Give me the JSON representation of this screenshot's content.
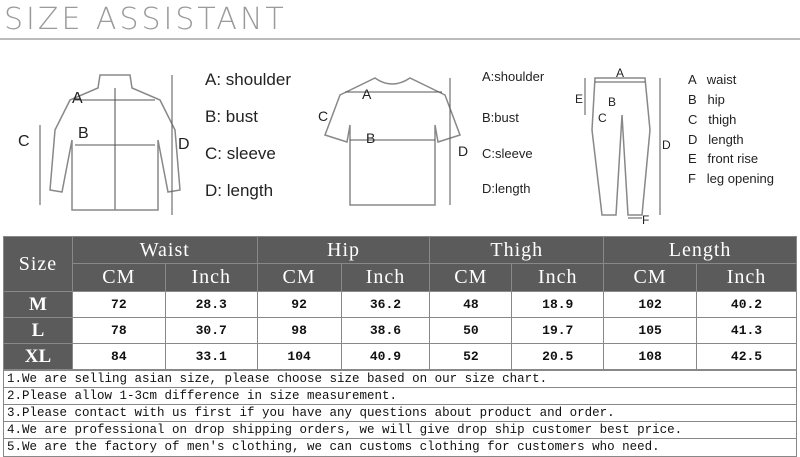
{
  "title": "SIZE ASSISTANT",
  "jacket": {
    "labels": {
      "a": "A",
      "b": "B",
      "c": "C",
      "d": "D"
    },
    "legend": [
      "A: shoulder",
      "B: bust",
      "C: sleeve",
      "D: length"
    ]
  },
  "tshirt": {
    "labels": {
      "a": "A",
      "b": "B",
      "c": "C",
      "d": "D"
    },
    "legend": [
      "A:shoulder",
      "B:bust",
      "C:sleeve",
      "D:length"
    ]
  },
  "pants": {
    "labels": {
      "a": "A",
      "b": "B",
      "c": "C",
      "d": "D",
      "e": "E",
      "f": "F"
    },
    "legend": [
      "A   waist",
      "B   hip",
      "C   thigh",
      "D   length",
      "E   front rise",
      "F   leg opening"
    ]
  },
  "table": {
    "size_header": "Size",
    "groups": [
      "Waist",
      "Hip",
      "Thigh",
      "Length"
    ],
    "units": [
      "CM",
      "Inch"
    ],
    "rows": [
      {
        "size": "M",
        "values": [
          "72",
          "28.3",
          "92",
          "36.2",
          "48",
          "18.9",
          "102",
          "40.2"
        ]
      },
      {
        "size": "L",
        "values": [
          "78",
          "30.7",
          "98",
          "38.6",
          "50",
          "19.7",
          "105",
          "41.3"
        ]
      },
      {
        "size": "XL",
        "values": [
          "84",
          "33.1",
          "104",
          "40.9",
          "52",
          "20.5",
          "108",
          "42.5"
        ]
      }
    ]
  },
  "notes": [
    "1.We are selling asian size, please choose size based on our size chart.",
    "2.Please allow 1-3cm difference in size measurement.",
    "3.Please contact with us first if you have any questions about product and order.",
    "4.We are professional on drop shipping orders, we will give drop ship customer best price.",
    "5.We are the factory of men's clothing, we can customs clothing for customers who need."
  ]
}
